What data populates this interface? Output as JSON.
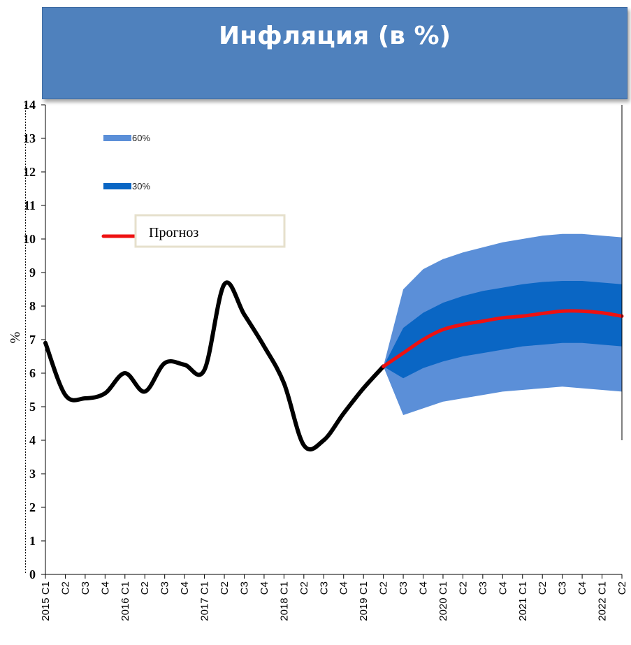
{
  "chart_data": {
    "type": "area",
    "title": "Инфляция (в %)",
    "ylabel": "%",
    "ylim": [
      0,
      14
    ],
    "yticks": [
      0,
      1,
      2,
      3,
      4,
      5,
      6,
      7,
      8,
      9,
      10,
      11,
      12,
      13,
      14
    ],
    "x": [
      "2015 С1",
      "С2",
      "С3",
      "С4",
      "2016 С1",
      "С2",
      "С3",
      "С4",
      "2017 С1",
      "С2",
      "С3",
      "С4",
      "2018 С1",
      "С2",
      "С3",
      "С4",
      "2019 С1",
      "С2",
      "С3",
      "С4",
      "2020 С1",
      "С2",
      "С3",
      "С4",
      "2021 С1",
      "С2",
      "С3",
      "С4",
      "2022 С1",
      "С2"
    ],
    "forecast_start": "2019 С2",
    "series": [
      {
        "values": [
          6.9,
          5.35,
          5.25,
          5.4,
          6.0,
          5.45,
          6.3,
          6.25,
          6.1,
          8.65,
          7.75,
          6.8,
          5.7,
          3.85,
          4.0,
          4.8,
          5.55,
          6.2,
          null,
          null,
          null,
          null,
          null,
          null,
          null,
          null,
          null,
          null,
          null,
          null
        ],
        "color": "#000000"
      },
      {
        "name": "Прогноз",
        "values": [
          null,
          null,
          null,
          null,
          null,
          null,
          null,
          null,
          null,
          null,
          null,
          null,
          null,
          null,
          null,
          null,
          null,
          6.2,
          6.6,
          7.0,
          7.3,
          7.45,
          7.55,
          7.65,
          7.7,
          7.78,
          7.85,
          7.85,
          7.8,
          7.7
        ],
        "color": "#ee1111"
      }
    ],
    "bands": [
      {
        "name": "60%",
        "color": "#5b8fd8",
        "lower": [
          null,
          null,
          null,
          null,
          null,
          null,
          null,
          null,
          null,
          null,
          null,
          null,
          null,
          null,
          null,
          null,
          null,
          6.2,
          4.75,
          4.95,
          5.15,
          5.25,
          5.35,
          5.45,
          5.5,
          5.55,
          5.6,
          5.55,
          5.5,
          5.45
        ],
        "upper": [
          null,
          null,
          null,
          null,
          null,
          null,
          null,
          null,
          null,
          null,
          null,
          null,
          null,
          null,
          null,
          null,
          null,
          6.2,
          8.5,
          9.1,
          9.4,
          9.6,
          9.75,
          9.9,
          10.0,
          10.1,
          10.15,
          10.15,
          10.1,
          10.05
        ]
      },
      {
        "name": "30%",
        "color": "#0a66c4",
        "lower": [
          null,
          null,
          null,
          null,
          null,
          null,
          null,
          null,
          null,
          null,
          null,
          null,
          null,
          null,
          null,
          null,
          null,
          6.2,
          5.85,
          6.15,
          6.35,
          6.5,
          6.6,
          6.7,
          6.8,
          6.85,
          6.9,
          6.9,
          6.85,
          6.8
        ],
        "upper": [
          null,
          null,
          null,
          null,
          null,
          null,
          null,
          null,
          null,
          null,
          null,
          null,
          null,
          null,
          null,
          null,
          null,
          6.2,
          7.35,
          7.8,
          8.1,
          8.3,
          8.45,
          8.55,
          8.65,
          8.72,
          8.75,
          8.75,
          8.7,
          8.65
        ]
      }
    ],
    "legend": [
      "60%",
      "30%",
      "Прогноз"
    ],
    "legend_position": "top-left",
    "grid": false
  }
}
